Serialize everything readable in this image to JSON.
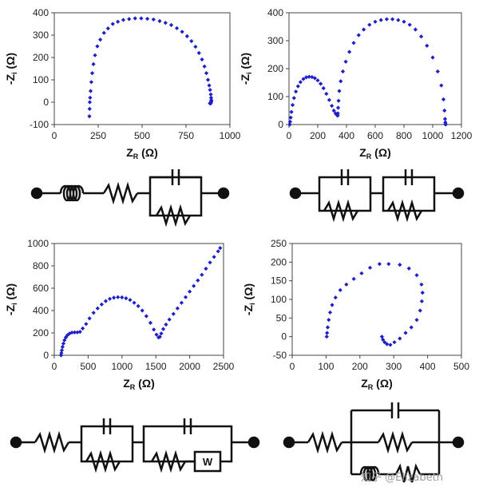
{
  "chart_data": [
    {
      "type": "scatter",
      "x": [
        200,
        201,
        202,
        204,
        207,
        211,
        216,
        223,
        232,
        245,
        262,
        283,
        306,
        333,
        362,
        393,
        426,
        460,
        495,
        530,
        565,
        600,
        633,
        666,
        698,
        728,
        756,
        781,
        804,
        824,
        841,
        855,
        866,
        875,
        882,
        887,
        891,
        893,
        894,
        894,
        893,
        892,
        891,
        890,
        889,
        888,
        888,
        887,
        887,
        886
      ],
      "y": [
        -63,
        -30,
        0,
        20,
        50,
        90,
        130,
        170,
        210,
        250,
        280,
        310,
        330,
        350,
        360,
        368,
        372,
        375,
        375,
        373,
        370,
        363,
        355,
        345,
        331,
        315,
        295,
        273,
        248,
        220,
        191,
        160,
        130,
        100,
        75,
        55,
        35,
        20,
        10,
        5,
        2,
        0,
        -5,
        -5,
        -5,
        -5,
        -5,
        -5,
        -5,
        -5
      ],
      "xlim": [
        0,
        1000
      ],
      "ylim": [
        -100,
        400
      ],
      "xticks": [
        "0",
        "250",
        "500",
        "750",
        "1000"
      ],
      "yticks": [
        "-100",
        "0",
        "100",
        "200",
        "300",
        "400"
      ],
      "xlabel_main": "Z",
      "xlabel_sub": "R",
      "xlabel_unit": " (Ω)",
      "ylabel_main": "-Z",
      "ylabel_sub": "i",
      "ylabel_unit": " (Ω)",
      "color": "#1f1fc8"
    },
    {
      "type": "scatter",
      "x": [
        5,
        8,
        12,
        17,
        25,
        35,
        48,
        63,
        80,
        100,
        120,
        140,
        160,
        180,
        200,
        220,
        240,
        260,
        280,
        298,
        312,
        324,
        332,
        336,
        338,
        339,
        340,
        342,
        345,
        350,
        360,
        375,
        395,
        420,
        450,
        485,
        520,
        560,
        600,
        640,
        680,
        720,
        760,
        800,
        840,
        880,
        920,
        960,
        1000,
        1035,
        1060,
        1075,
        1082,
        1086,
        1088,
        1089,
        1090
      ],
      "y": [
        0,
        10,
        25,
        45,
        70,
        95,
        118,
        137,
        152,
        163,
        169,
        171,
        170,
        166,
        158,
        146,
        130,
        110,
        88,
        67,
        50,
        40,
        35,
        33,
        32,
        32,
        40,
        60,
        85,
        120,
        155,
        190,
        225,
        260,
        292,
        320,
        340,
        357,
        368,
        374,
        377,
        377,
        374,
        368,
        357,
        340,
        315,
        282,
        240,
        190,
        140,
        90,
        50,
        20,
        8,
        2,
        0
      ],
      "xlim": [
        0,
        1200
      ],
      "ylim": [
        0,
        400
      ],
      "xticks": [
        "0",
        "200",
        "400",
        "600",
        "800",
        "1000",
        "1200"
      ],
      "yticks": [
        "0",
        "100",
        "200",
        "300",
        "400"
      ],
      "xlabel_main": "Z",
      "xlabel_sub": "R",
      "xlabel_unit": " (Ω)",
      "ylabel_main": "-Z",
      "ylabel_sub": "i",
      "ylabel_unit": " (Ω)",
      "color": "#1f1fc8"
    },
    {
      "type": "scatter",
      "x": [
        100,
        105,
        112,
        122,
        135,
        150,
        170,
        195,
        225,
        260,
        300,
        340,
        380,
        420,
        470,
        520,
        580,
        640,
        700,
        760,
        820,
        880,
        940,
        1000,
        1060,
        1120,
        1180,
        1240,
        1300,
        1360,
        1420,
        1470,
        1510,
        1540,
        1560,
        1580,
        1610,
        1650,
        1700,
        1760,
        1820,
        1880,
        1940,
        2000,
        2060,
        2120,
        2180,
        2240,
        2300,
        2360,
        2420,
        2450
      ],
      "y": [
        0,
        20,
        45,
        75,
        105,
        135,
        160,
        180,
        195,
        203,
        205,
        205,
        210,
        240,
        280,
        330,
        380,
        420,
        455,
        485,
        505,
        515,
        520,
        518,
        510,
        495,
        470,
        440,
        400,
        350,
        290,
        230,
        185,
        160,
        165,
        195,
        235,
        275,
        320,
        370,
        420,
        470,
        520,
        570,
        620,
        670,
        720,
        775,
        830,
        880,
        930,
        960
      ],
      "xlim": [
        0,
        2500
      ],
      "ylim": [
        0,
        1000
      ],
      "xticks": [
        "0",
        "500",
        "1000",
        "1500",
        "2000",
        "2500"
      ],
      "yticks": [
        "0",
        "200",
        "400",
        "600",
        "800",
        "1000"
      ],
      "xlabel_main": "Z",
      "xlabel_sub": "R",
      "xlabel_unit": " (Ω)",
      "ylabel_main": "-Z",
      "ylabel_sub": "i",
      "ylabel_unit": " (Ω)",
      "color": "#1f1fc8"
    },
    {
      "type": "scatter",
      "x": [
        102,
        103,
        105,
        108,
        112,
        118,
        128,
        142,
        160,
        182,
        205,
        230,
        258,
        285,
        318,
        345,
        368,
        382,
        385,
        383,
        378,
        368,
        352,
        335,
        318,
        302,
        290,
        280,
        273,
        268,
        265
      ],
      "y": [
        0,
        10,
        25,
        45,
        65,
        85,
        105,
        125,
        140,
        155,
        170,
        185,
        195,
        195,
        193,
        183,
        165,
        140,
        118,
        95,
        70,
        45,
        25,
        10,
        -5,
        -15,
        -22,
        -20,
        -15,
        -8,
        0
      ],
      "xlim": [
        0,
        500
      ],
      "ylim": [
        -50,
        250
      ],
      "xticks": [
        "0",
        "100",
        "200",
        "300",
        "400",
        "500"
      ],
      "yticks": [
        "-50",
        "0",
        "50",
        "100",
        "150",
        "200",
        "250"
      ],
      "xlabel_main": "Z",
      "xlabel_sub": "R",
      "xlabel_unit": " (Ω)",
      "ylabel_main": "-Z",
      "ylabel_sub": "i",
      "ylabel_unit": " (Ω)",
      "color": "#1f1fc8"
    }
  ],
  "circuits": {
    "w_label": "W"
  },
  "watermark": "知乎 @Elizabeth"
}
